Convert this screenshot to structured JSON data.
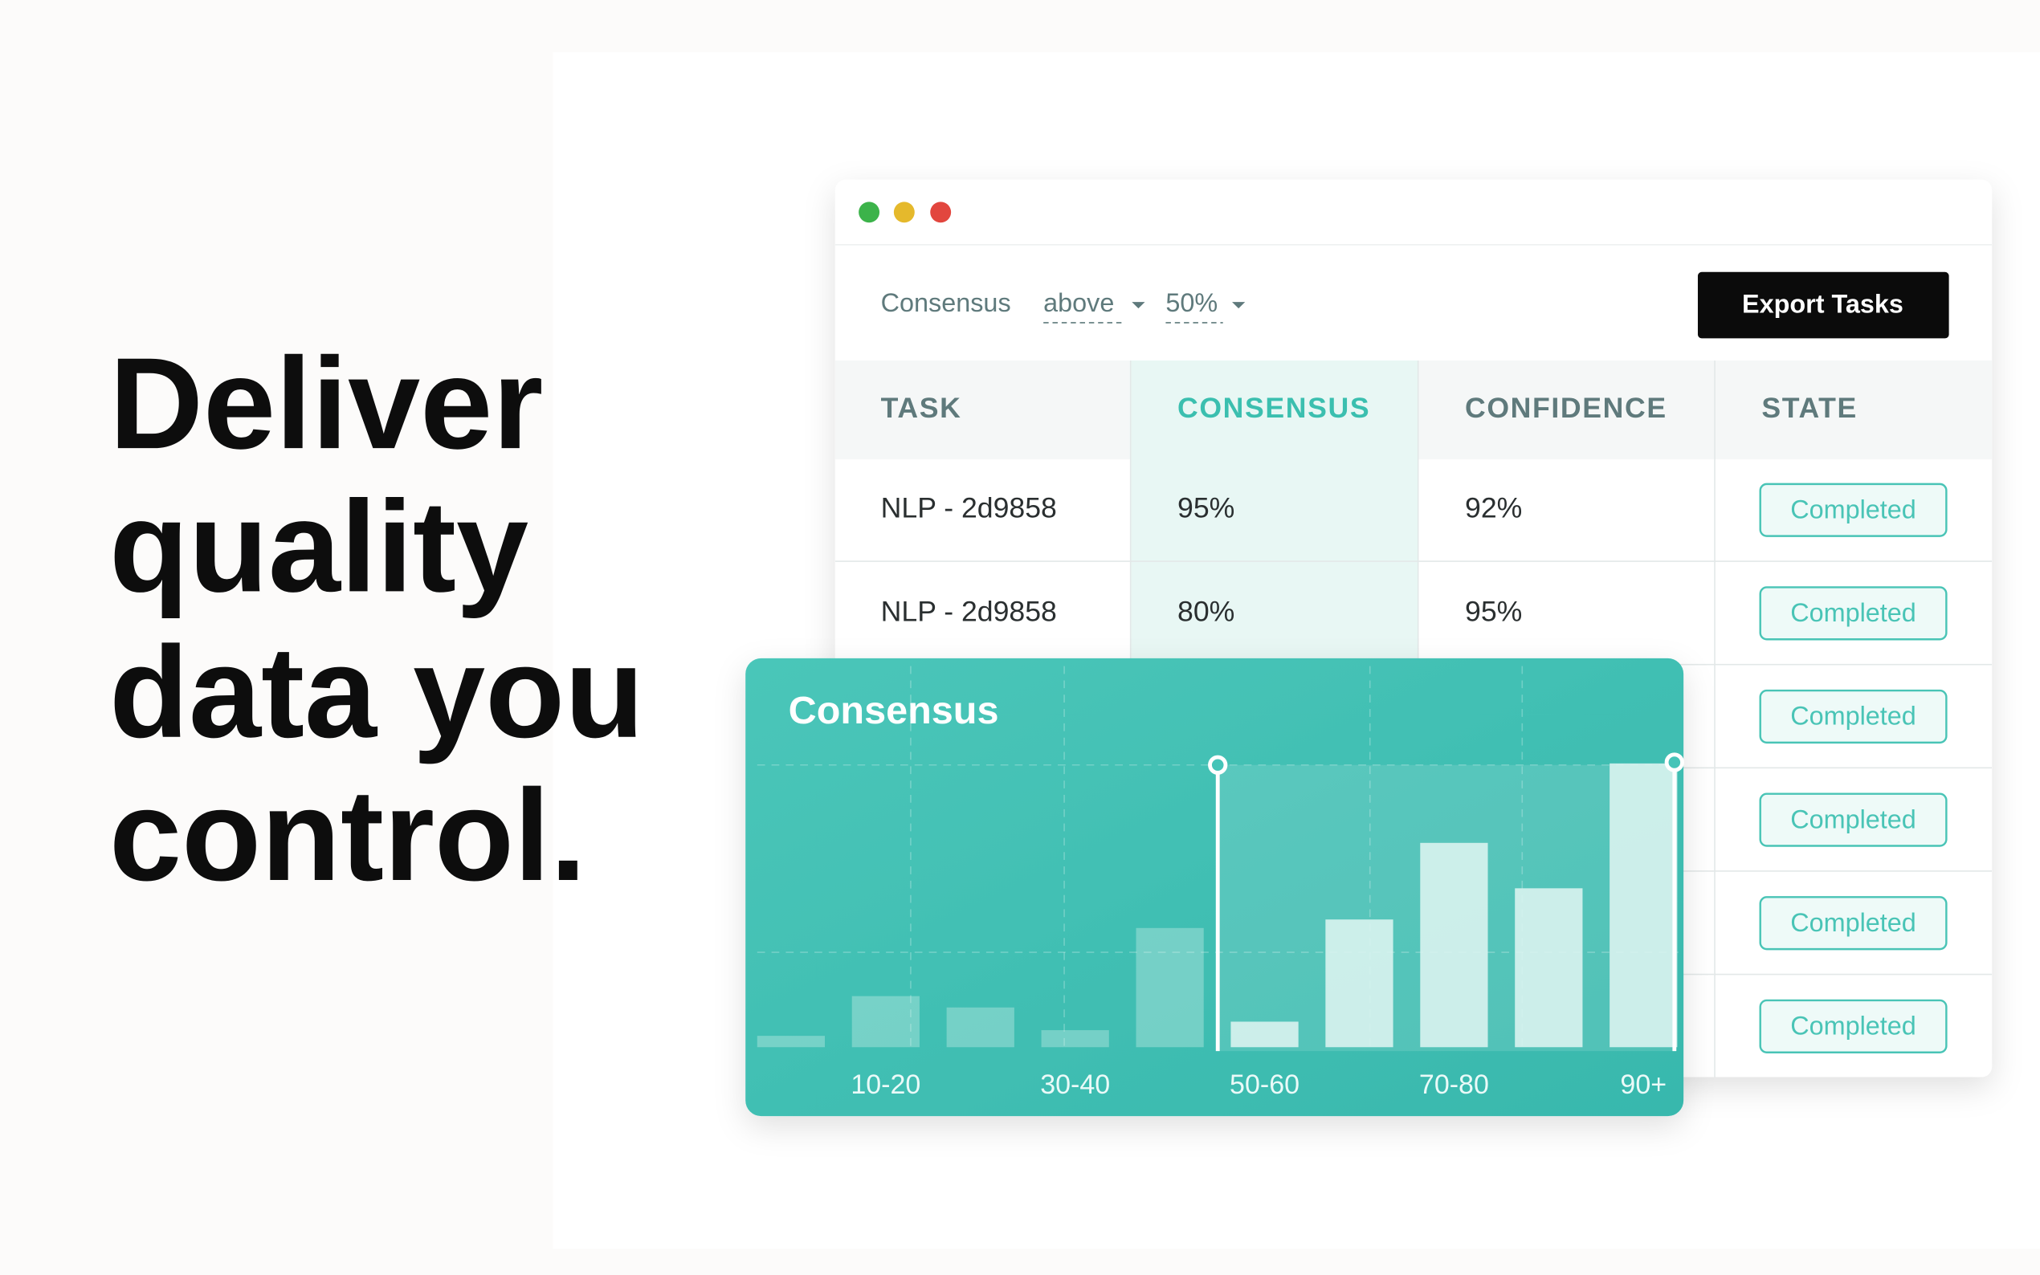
{
  "headline": {
    "lines": [
      "Deliver",
      "quality",
      "data you",
      "control."
    ]
  },
  "toolbar": {
    "filter_label": "Consensus",
    "operator": "above",
    "threshold": "50%",
    "button": "Export Tasks"
  },
  "table": {
    "headers": [
      "TASK",
      "CONSENSUS",
      "CONFIDENCE",
      "STATE"
    ],
    "rows": [
      {
        "task": "NLP - 2d9858",
        "consensus": "95%",
        "confidence": "92%",
        "state": "Completed"
      },
      {
        "task": "NLP - 2d9858",
        "consensus": "80%",
        "confidence": "95%",
        "state": "Completed"
      },
      {
        "state": "Completed"
      },
      {
        "state": "Completed"
      },
      {
        "state": "Completed"
      },
      {
        "state": "Completed"
      }
    ]
  },
  "chart_data": {
    "type": "bar",
    "title": "Consensus",
    "categories": [
      null,
      "10-20",
      null,
      "30-40",
      null,
      "50-60",
      null,
      "70-80",
      null,
      "90+"
    ],
    "values": [
      4,
      18,
      14,
      6,
      42,
      9,
      45,
      72,
      56,
      100
    ],
    "ylim": [
      0,
      110
    ],
    "color": "#d9f3ef"
  }
}
